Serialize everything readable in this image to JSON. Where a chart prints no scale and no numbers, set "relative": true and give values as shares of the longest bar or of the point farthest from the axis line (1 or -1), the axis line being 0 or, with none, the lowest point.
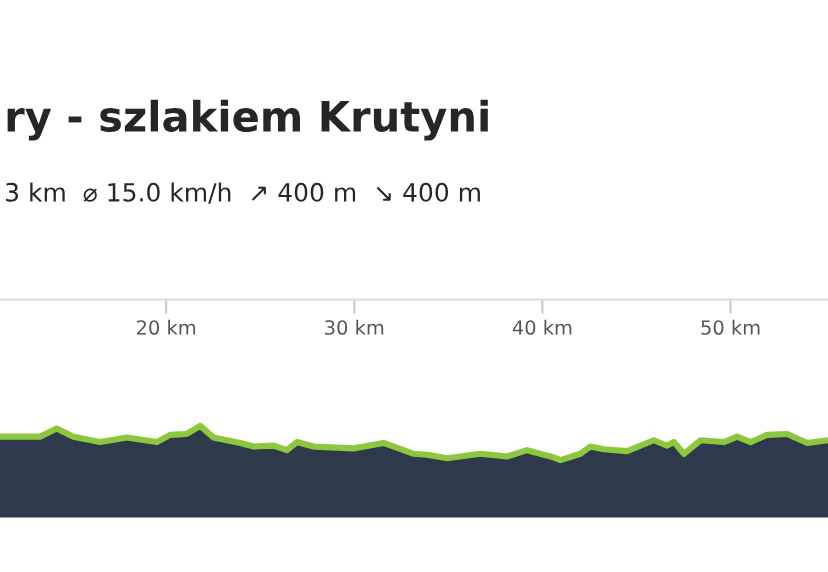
{
  "chart_data": {
    "type": "area",
    "relative": true,
    "title": "ry - szlakiem Krutyni",
    "subtitle": "3 km  ⌀ 15.0 km/h  ↗ 400 m  ↘ 400 m",
    "xlim": [
      11.17,
      55.18
    ],
    "xticks": [
      {
        "value": 20,
        "label": "20 km"
      },
      {
        "value": 30,
        "label": "30 km"
      },
      {
        "value": 40,
        "label": "40 km"
      },
      {
        "value": 50,
        "label": "50 km"
      }
    ],
    "x": [
      11.17,
      13.3,
      14.18,
      15.07,
      16.49,
      17.91,
      19.5,
      20.21,
      21.1,
      21.81,
      22.52,
      23.94,
      24.65,
      25.71,
      26.42,
      26.95,
      27.84,
      29.96,
      31.56,
      33.16,
      33.87,
      34.93,
      36.7,
      38.12,
      39.18,
      40.6,
      40.96,
      42.02,
      42.55,
      43.26,
      44.5,
      45.92,
      46.63,
      46.99,
      47.52,
      48.4,
      49.65,
      50.35,
      51.06,
      51.95,
      53.01,
      54.08,
      55.18
    ],
    "series": [
      {
        "color": "#2e3a4b",
        "values": [
          0.88,
          0.88,
          0.97,
          0.88,
          0.82,
          0.87,
          0.82,
          0.9,
          0.91,
          1.0,
          0.87,
          0.81,
          0.77,
          0.78,
          0.73,
          0.82,
          0.77,
          0.75,
          0.81,
          0.69,
          0.68,
          0.64,
          0.69,
          0.66,
          0.73,
          0.65,
          0.62,
          0.69,
          0.77,
          0.74,
          0.72,
          0.84,
          0.78,
          0.82,
          0.69,
          0.84,
          0.82,
          0.88,
          0.82,
          0.9,
          0.91,
          0.81,
          0.84
        ]
      }
    ],
    "grid": false,
    "legend": false
  }
}
